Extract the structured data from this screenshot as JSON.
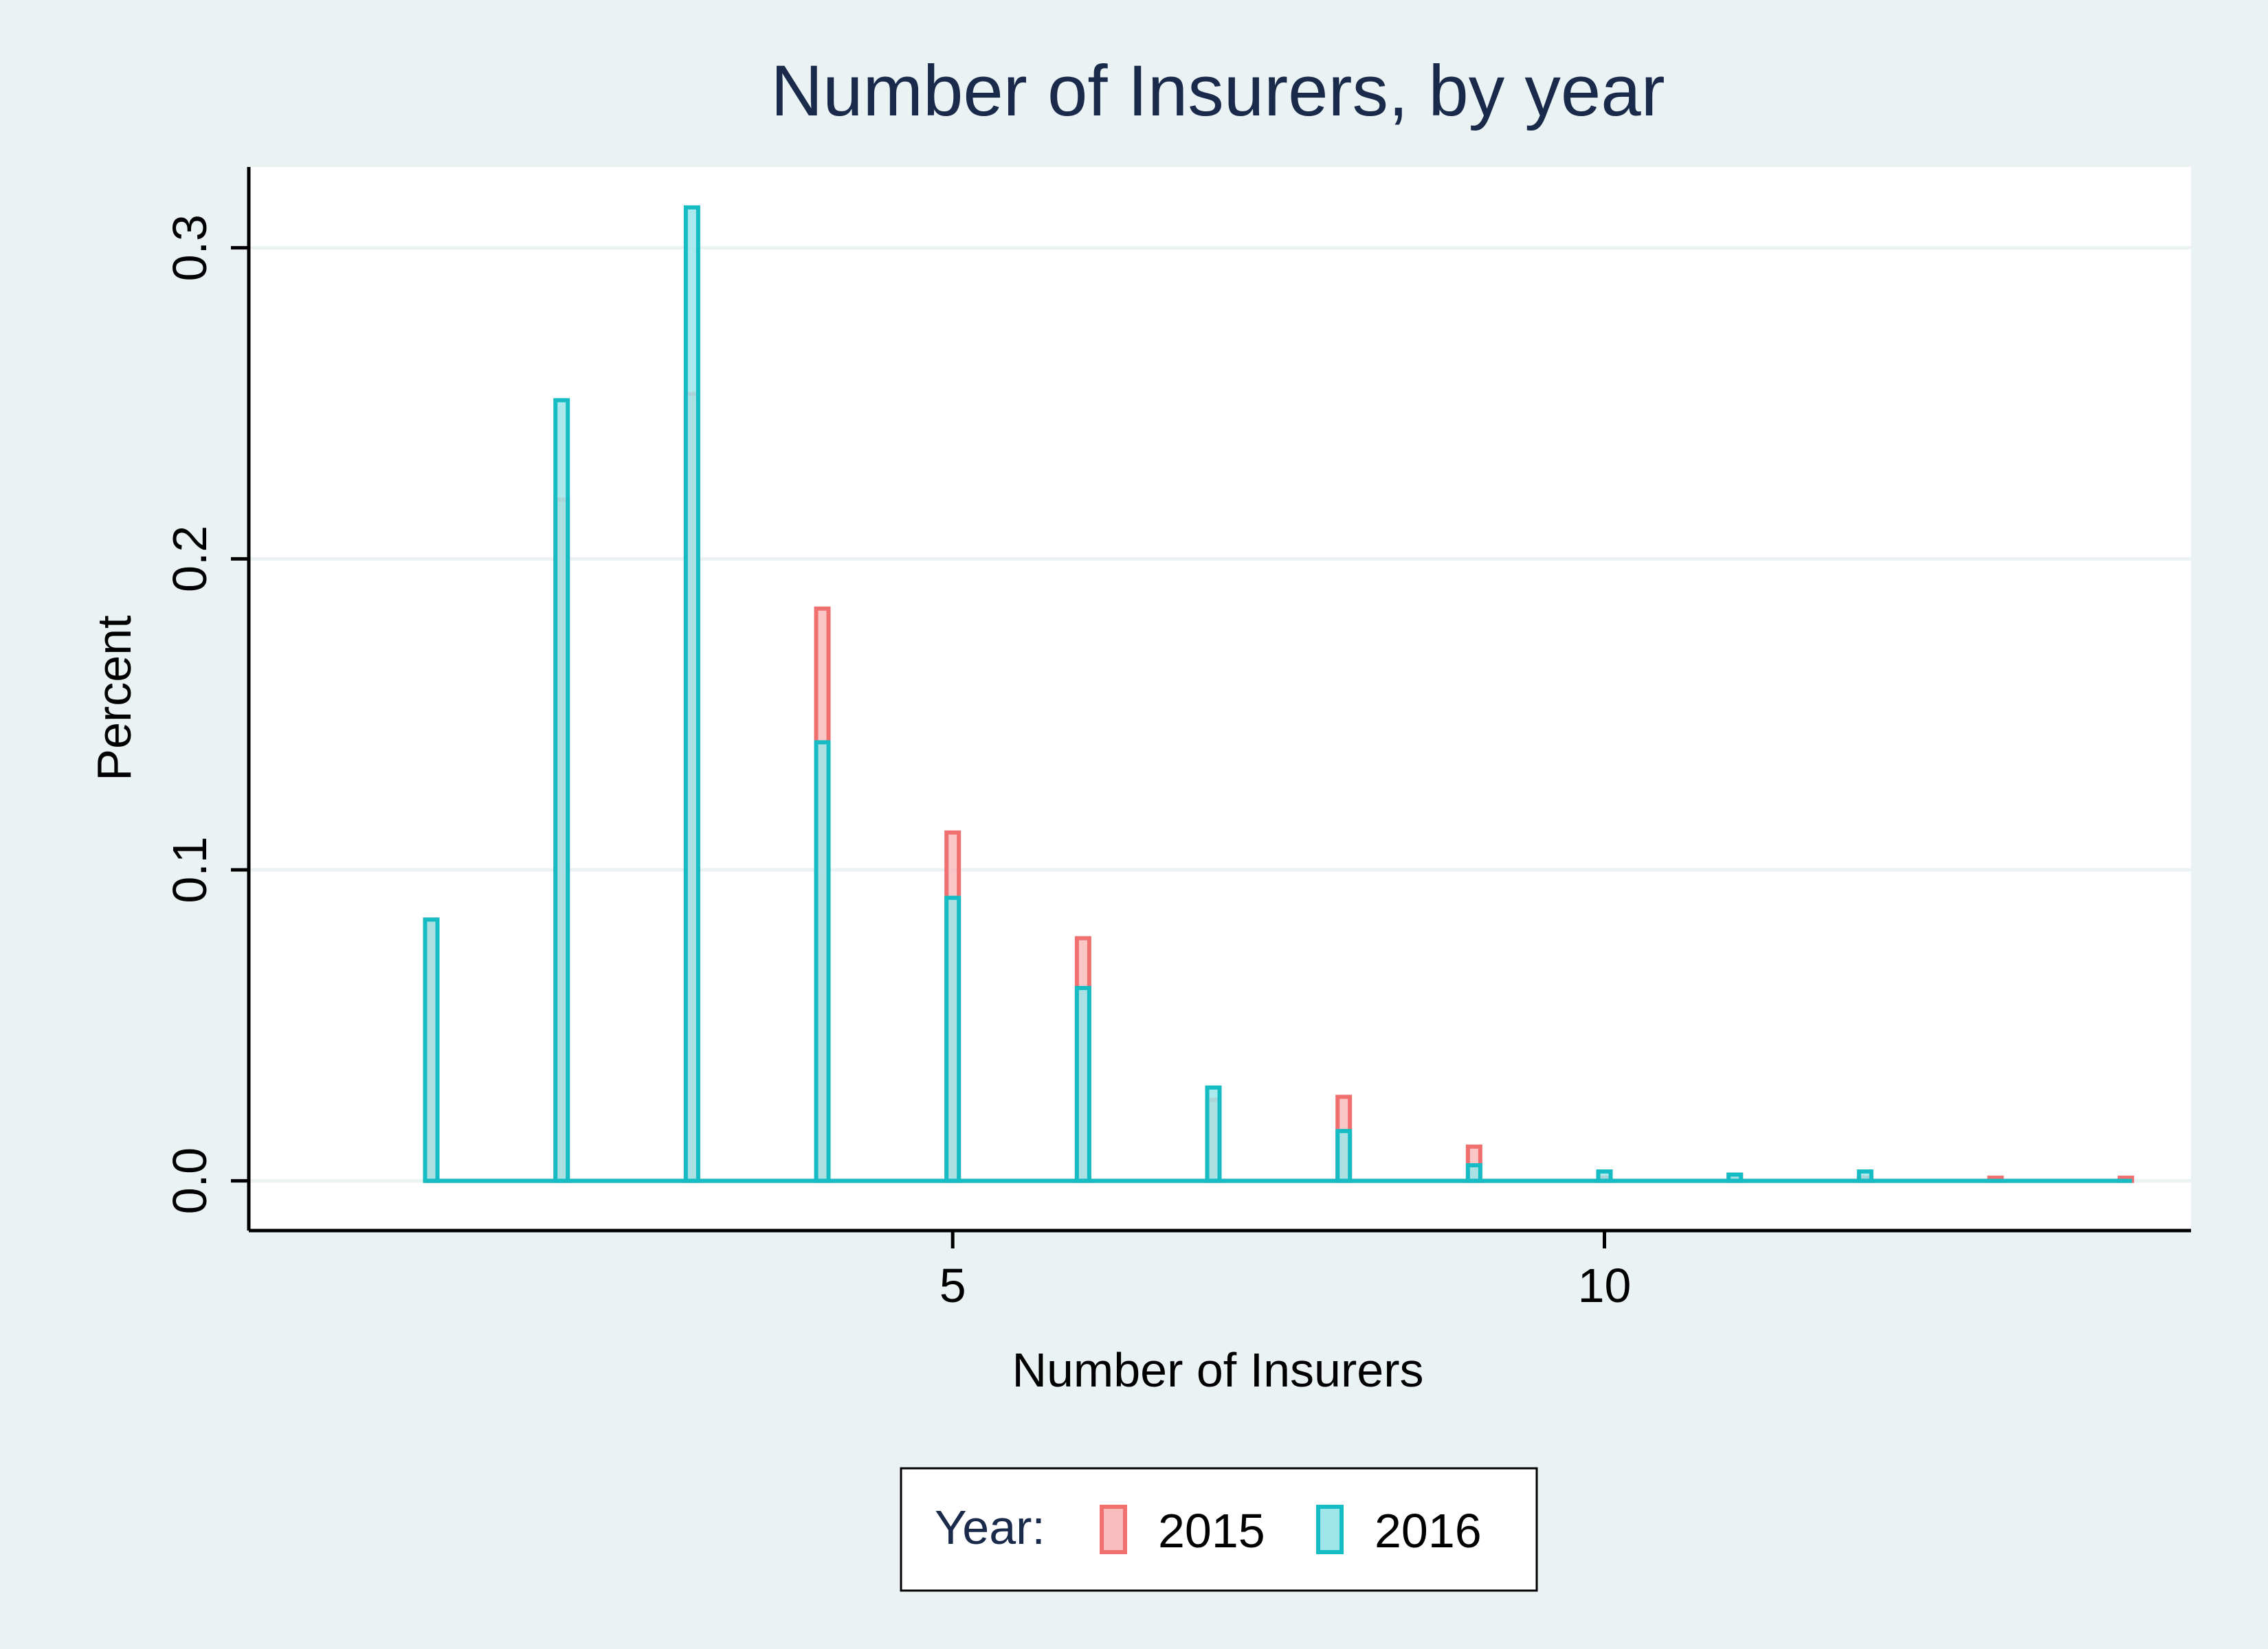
{
  "chart_data": {
    "type": "bar",
    "title": "Number of Insurers, by year",
    "xlabel": "Number of Insurers",
    "ylabel": "Percent",
    "x": [
      1,
      2,
      3,
      4,
      5,
      6,
      7,
      8,
      9,
      10,
      11,
      12,
      13,
      14
    ],
    "xlim": [
      -0.4,
      14.5
    ],
    "ylim": [
      -0.016,
      0.326
    ],
    "x_ticks": [
      5,
      10
    ],
    "x_tick_labels": [
      "5",
      "10"
    ],
    "y_ticks": [
      0,
      0.1,
      0.2,
      0.3
    ],
    "y_tick_labels": [
      "0.0",
      "0.1",
      "0.2",
      "0.3"
    ],
    "grid": true,
    "legend": {
      "title": "Year:",
      "position": "bottom-center",
      "entries": [
        "2015",
        "2016"
      ]
    },
    "series": [
      {
        "name": "2015",
        "color": "#f07070",
        "fill": "#f9bcbc",
        "values": [
          0.084,
          0.219,
          0.253,
          0.184,
          0.112,
          0.078,
          0.026,
          0.027,
          0.011,
          0.001,
          0.002,
          0.001,
          0.001,
          0.001
        ]
      },
      {
        "name": "2016",
        "color": "#16bcc4",
        "fill": "#9ee5e9",
        "values": [
          0.084,
          0.251,
          0.313,
          0.141,
          0.091,
          0.062,
          0.03,
          0.016,
          0.005,
          0.003,
          0.002,
          0.003,
          0.0,
          0.0
        ]
      }
    ]
  }
}
